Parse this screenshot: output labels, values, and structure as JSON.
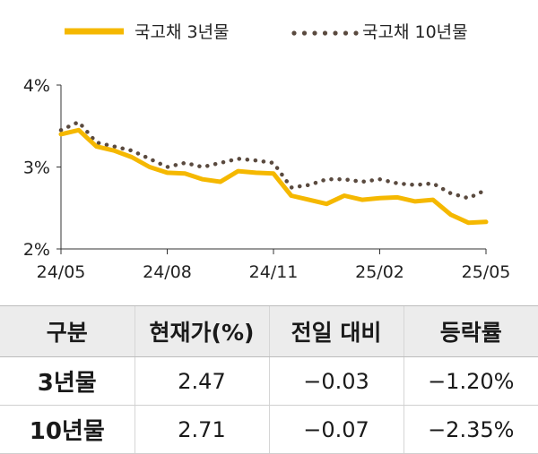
{
  "chart_data": {
    "type": "line",
    "title": "",
    "xlabel": "",
    "ylabel": "",
    "ylim": [
      2,
      4
    ],
    "yticks": [
      "2%",
      "3%",
      "4%"
    ],
    "xticks": [
      "24/05",
      "24/08",
      "24/11",
      "25/02",
      "25/05"
    ],
    "x": [
      "24/05/01",
      "24/05/15",
      "24/06/01",
      "24/06/15",
      "24/07/01",
      "24/07/15",
      "24/08/01",
      "24/08/15",
      "24/09/01",
      "24/09/15",
      "24/10/01",
      "24/10/15",
      "24/11/01",
      "24/11/15",
      "24/12/01",
      "24/12/15",
      "25/01/01",
      "25/01/15",
      "25/02/01",
      "25/02/15",
      "25/03/01",
      "25/03/15",
      "25/04/01",
      "25/04/15",
      "25/05/01"
    ],
    "series": [
      {
        "name": "국고채 3년물",
        "color": "#f5b800",
        "style": "solid",
        "values": [
          3.4,
          3.45,
          3.25,
          3.2,
          3.12,
          3.0,
          2.93,
          2.92,
          2.85,
          2.82,
          2.95,
          2.93,
          2.92,
          2.65,
          2.6,
          2.55,
          2.65,
          2.6,
          2.62,
          2.63,
          2.58,
          2.6,
          2.42,
          2.32,
          2.33
        ]
      },
      {
        "name": "국고채 10년물",
        "color": "#5a4a3f",
        "style": "dotted",
        "values": [
          3.45,
          3.55,
          3.3,
          3.25,
          3.2,
          3.1,
          3.0,
          3.05,
          3.0,
          3.05,
          3.1,
          3.08,
          3.05,
          2.75,
          2.78,
          2.85,
          2.85,
          2.82,
          2.85,
          2.8,
          2.78,
          2.8,
          2.68,
          2.62,
          2.72
        ]
      }
    ]
  },
  "table": {
    "headers": [
      "구분",
      "현재가(%)",
      "전일 대비",
      "등락률"
    ],
    "rows": [
      {
        "label": "3년물",
        "price": "2.47",
        "change": "−0.03",
        "rate": "−1.20%"
      },
      {
        "label": "10년물",
        "price": "2.71",
        "change": "−0.07",
        "rate": "−2.35%"
      }
    ]
  }
}
